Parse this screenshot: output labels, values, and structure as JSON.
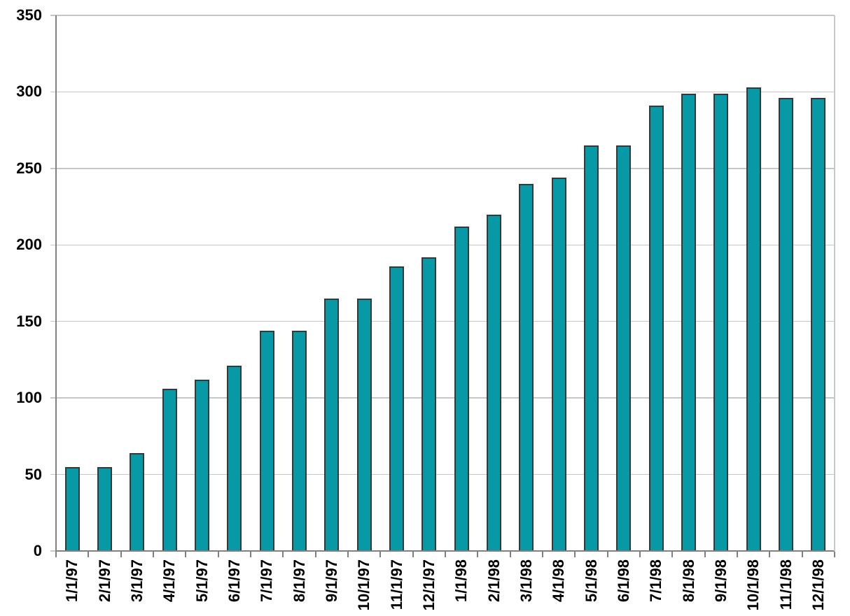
{
  "chart_data": {
    "type": "bar",
    "title": "",
    "xlabel": "",
    "ylabel": "",
    "categories": [
      "1/1/97",
      "2/1/97",
      "3/1/97",
      "4/1/97",
      "5/1/97",
      "6/1/97",
      "7/1/97",
      "8/1/97",
      "9/1/97",
      "10/1/97",
      "11/1/97",
      "12/1/97",
      "1/1/98",
      "2/1/98",
      "3/1/98",
      "4/1/98",
      "5/1/98",
      "6/1/98",
      "7/1/98",
      "8/1/98",
      "9/1/98",
      "10/1/98",
      "11/1/98",
      "12/1/98"
    ],
    "values": [
      55,
      55,
      64,
      106,
      112,
      121,
      144,
      144,
      165,
      165,
      186,
      192,
      212,
      220,
      240,
      244,
      265,
      265,
      291,
      299,
      299,
      303,
      296,
      296
    ],
    "ylim": [
      0,
      350
    ],
    "yticks": [
      0,
      50,
      100,
      150,
      200,
      250,
      300,
      350
    ],
    "grid": "horizontal",
    "legend": "none",
    "colors": {
      "bar_fill": "#0899A6",
      "bar_border": "#383838",
      "gridline": "#C6C6C6",
      "axis": "#808080",
      "tick_label": "#000000",
      "background": "#FFFFFF"
    }
  }
}
